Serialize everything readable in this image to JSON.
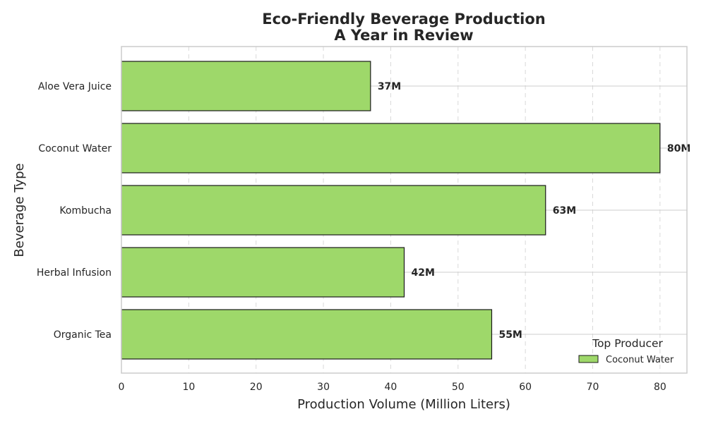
{
  "chart_data": {
    "type": "bar",
    "orientation": "horizontal",
    "title_line1": "Eco-Friendly Beverage Production",
    "title_line2": "A Year in Review",
    "xlabel": "Production Volume (Million Liters)",
    "ylabel": "Beverage Type",
    "categories": [
      "Aloe Vera Juice",
      "Coconut Water",
      "Kombucha",
      "Herbal Infusion",
      "Organic Tea"
    ],
    "values": [
      37,
      80,
      63,
      42,
      55
    ],
    "value_labels": [
      "37M",
      "80M",
      "63M",
      "42M",
      "55M"
    ],
    "xlim": [
      0,
      84
    ],
    "x_ticks": [
      0,
      10,
      20,
      30,
      40,
      50,
      60,
      70,
      80
    ],
    "x_tick_labels": [
      "0",
      "10",
      "20",
      "30",
      "40",
      "50",
      "60",
      "70",
      "80"
    ],
    "grid": "vertical dashed, horizontal solid",
    "legend": {
      "title": "Top Producer",
      "entries": [
        "Coconut Water"
      ],
      "placement": "lower-right"
    },
    "colors": {
      "bar_fill": "#9ED86A",
      "bar_edge": "#1a1a1a",
      "frame": "#cccccc",
      "grid": "#d9d9d9",
      "text": "#262626"
    }
  }
}
